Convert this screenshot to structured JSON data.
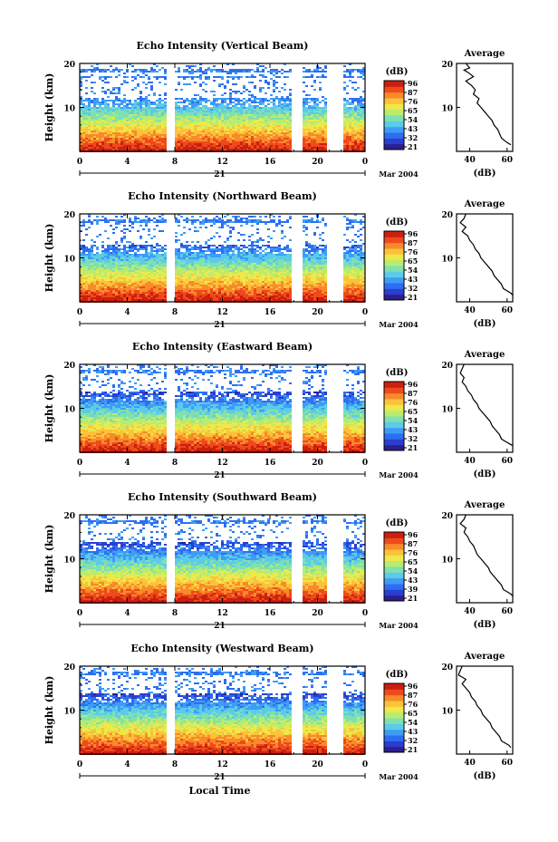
{
  "colors": {
    "colormap": [
      "#2b1f8c",
      "#2a3ed0",
      "#2d6ef0",
      "#3f9cf6",
      "#5ccbe8",
      "#7fe0b0",
      "#b8ec70",
      "#eee84a",
      "#fbc23a",
      "#f88a2a",
      "#ee4a1c",
      "#cc1f10"
    ],
    "background": "#ffffff",
    "axis": "#000000"
  },
  "chart_data": [
    {
      "type": "heatmap",
      "title": "Echo Intensity (Vertical Beam)",
      "ylabel": "Height (km)",
      "x_ticks": [
        "0",
        "4",
        "8",
        "12",
        "16",
        "20",
        "0"
      ],
      "y_ticks": [
        "10",
        "20"
      ],
      "day_label": "21",
      "date_label": "Mar 2004",
      "colorbar_unit": "(dB)",
      "colorbar_ticks": [
        "96",
        "87",
        "76",
        "65",
        "54",
        "43",
        "32",
        "21"
      ],
      "profile": {
        "title": "Average",
        "xlabel": "(dB)",
        "x_ticks": [
          "40",
          "60"
        ],
        "y_ticks": [
          "10",
          "20"
        ],
        "x": [
          38,
          40,
          37,
          39,
          42,
          38,
          41,
          43,
          42,
          45,
          44,
          46,
          48,
          50,
          52,
          53,
          55,
          56,
          57,
          60,
          62
        ],
        "y": [
          20,
          19,
          18.5,
          18,
          17,
          16,
          15,
          14,
          13,
          12,
          11,
          10,
          9,
          8,
          7,
          6,
          5,
          4,
          3,
          2,
          1.5
        ]
      }
    },
    {
      "type": "heatmap",
      "title": "Echo Intensity (Northward Beam)",
      "ylabel": "Height (km)",
      "x_ticks": [
        "0",
        "4",
        "8",
        "12",
        "16",
        "20",
        "0"
      ],
      "y_ticks": [
        "10",
        "20"
      ],
      "day_label": "21",
      "date_label": "Mar 2004",
      "colorbar_unit": "(dB)",
      "colorbar_ticks": [
        "96",
        "87",
        "76",
        "65",
        "54",
        "43",
        "32",
        "21"
      ],
      "profile": {
        "title": "Average",
        "xlabel": "(dB)",
        "x_ticks": [
          "40",
          "60"
        ],
        "y_ticks": [
          "10",
          "20"
        ],
        "x": [
          38,
          37,
          35,
          38,
          36,
          39,
          40,
          42,
          43,
          45,
          46,
          48,
          50,
          52,
          53,
          55,
          57,
          58,
          60,
          62,
          63
        ],
        "y": [
          20,
          19,
          18,
          17,
          16,
          15,
          14,
          13,
          12,
          11,
          10,
          9,
          8,
          7,
          6,
          5,
          4,
          3,
          2.5,
          2,
          1.5
        ]
      }
    },
    {
      "type": "heatmap",
      "title": "Echo Intensity (Eastward Beam)",
      "ylabel": "Height (km)",
      "x_ticks": [
        "0",
        "4",
        "8",
        "12",
        "16",
        "20",
        "0"
      ],
      "y_ticks": [
        "10",
        "20"
      ],
      "day_label": "21",
      "date_label": "Mar 2004",
      "colorbar_unit": "(dB)",
      "colorbar_ticks": [
        "96",
        "87",
        "76",
        "65",
        "54",
        "43",
        "32",
        "21"
      ],
      "profile": {
        "title": "Average",
        "xlabel": "(dB)",
        "x_ticks": [
          "40",
          "60"
        ],
        "y_ticks": [
          "10",
          "20"
        ],
        "x": [
          37,
          36,
          35,
          37,
          36,
          38,
          39,
          41,
          42,
          44,
          45,
          47,
          49,
          51,
          52,
          54,
          56,
          57,
          59,
          61,
          63
        ],
        "y": [
          20,
          19,
          18,
          17,
          16,
          15,
          14,
          13,
          12,
          11,
          10,
          9,
          8,
          7,
          6,
          5,
          4,
          3,
          2.5,
          2,
          1.5
        ]
      }
    },
    {
      "type": "heatmap",
      "title": "Echo Intensity (Southward Beam)",
      "ylabel": "Height (km)",
      "x_ticks": [
        "0",
        "4",
        "8",
        "12",
        "16",
        "20",
        "0"
      ],
      "y_ticks": [
        "10",
        "20"
      ],
      "day_label": "21",
      "date_label": "Mar 2004",
      "colorbar_unit": "(dB)",
      "colorbar_ticks": [
        "96",
        "87",
        "76",
        "65",
        "54",
        "43",
        "39",
        "21"
      ],
      "profile": {
        "title": "Average",
        "xlabel": "(dB)",
        "x_ticks": [
          "40",
          "60"
        ],
        "y_ticks": [
          "10",
          "20"
        ],
        "x": [
          38,
          37,
          35,
          38,
          37,
          39,
          40,
          42,
          43,
          44,
          46,
          48,
          50,
          51,
          53,
          55,
          57,
          58,
          60,
          62,
          63
        ],
        "y": [
          20,
          19,
          18,
          17,
          16,
          15,
          14,
          13,
          12,
          11,
          10,
          9,
          8,
          7,
          6,
          5,
          4,
          3,
          2.5,
          2,
          1.5
        ]
      }
    },
    {
      "type": "heatmap",
      "title": "Echo Intensity (Westward Beam)",
      "ylabel": "Height (km)",
      "xlabel": "Local Time",
      "x_ticks": [
        "0",
        "4",
        "8",
        "12",
        "16",
        "20",
        "0"
      ],
      "y_ticks": [
        "10",
        "20"
      ],
      "day_label": "21",
      "date_label": "Mar 2004",
      "colorbar_unit": "(dB)",
      "colorbar_ticks": [
        "96",
        "87",
        "76",
        "65",
        "54",
        "43",
        "32",
        "21"
      ],
      "profile": {
        "title": "Average",
        "xlabel": "(dB)",
        "x_ticks": [
          "40",
          "60"
        ],
        "y_ticks": [
          "10",
          "20"
        ],
        "x": [
          36,
          35,
          34,
          38,
          36,
          38,
          40,
          41,
          43,
          44,
          46,
          47,
          49,
          51,
          52,
          54,
          56,
          57,
          59,
          61,
          62
        ],
        "y": [
          20,
          19,
          18,
          17,
          16,
          15,
          14,
          13,
          12,
          11,
          10,
          9,
          8,
          7,
          6,
          5,
          4,
          3,
          2.5,
          2,
          1.5
        ]
      }
    }
  ]
}
